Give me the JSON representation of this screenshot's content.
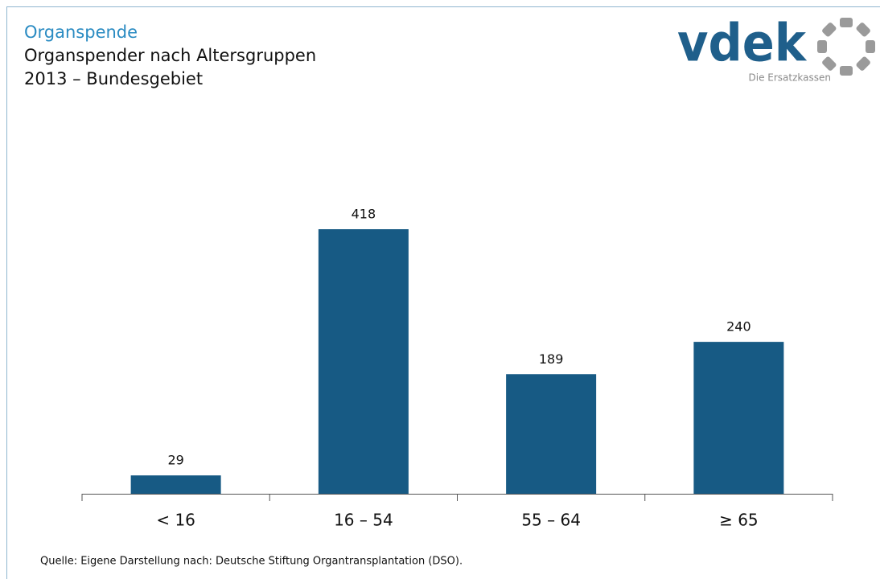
{
  "chart_data": {
    "type": "bar",
    "title": "Organspende",
    "subtitle": [
      "Organspender nach Altersgruppen",
      "2013 – Bundesgebiet"
    ],
    "categories": [
      "< 16",
      "16 – 54",
      "55 – 64",
      "≥ 65"
    ],
    "values": [
      29,
      418,
      189,
      240
    ],
    "color": "#175a84",
    "source": "Quelle: Eigene Darstellung nach: Deutsche Stiftung Organtransplantation (DSO)."
  },
  "logo": {
    "name": "vdek",
    "tagline": "Die Ersatzkassen"
  }
}
